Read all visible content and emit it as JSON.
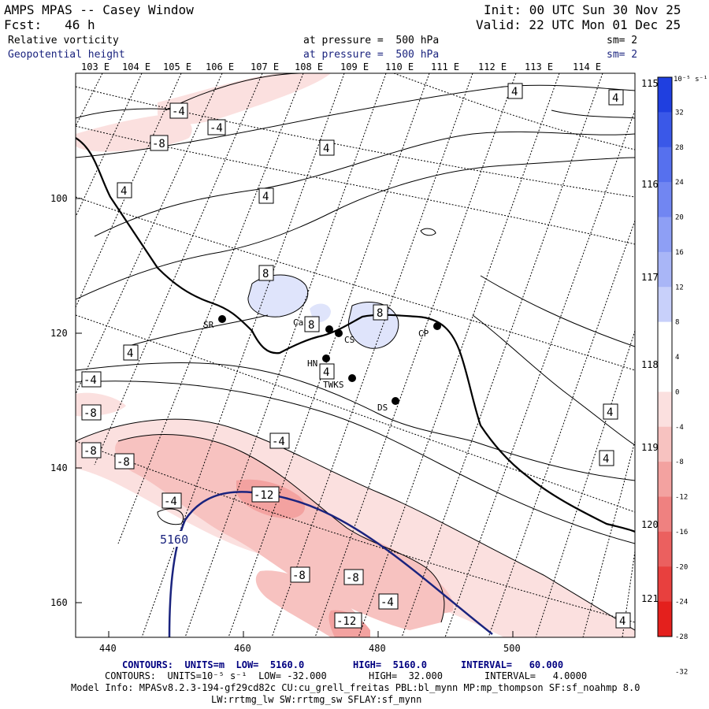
{
  "header": {
    "title": "AMPS MPAS -- Casey Window",
    "fcst": "Fcst:   46 h",
    "init": "Init: 00 UTC Sun 30 Nov 25",
    "valid": "Valid: 22 UTC Mon 01 Dec 25",
    "field1": "Relative vorticity",
    "field1_level": "at pressure =  500 hPa",
    "field1_sm": "sm= 2",
    "field2": "Geopotential height",
    "field2_level": "at pressure =  500 hPa",
    "field2_sm": "sm= 2"
  },
  "lon_labels_top": [
    "103 E",
    "104 E",
    "105 E",
    "106 E",
    "107 E",
    "108 E",
    "109 E",
    "110 E",
    "111 E",
    "112 E",
    "113 E",
    "114 E"
  ],
  "lon_labels_right": [
    "115 E",
    "116 E",
    "117 E",
    "118 E",
    "119 E",
    "120 E",
    "121 E"
  ],
  "grid_x_labels": [
    "440",
    "460",
    "480",
    "500"
  ],
  "grid_y_labels": [
    "100",
    "120",
    "140",
    "160"
  ],
  "stations": [
    "SR",
    "Casey",
    "CS",
    "CP",
    "HN",
    "TWKS",
    "DS"
  ],
  "contour_labels": {
    "vorticity": [
      "-4",
      "-4",
      "-8",
      "4",
      "4",
      "4",
      "4",
      "4",
      "8",
      "8",
      "4",
      "8",
      "4",
      "-4",
      "-8",
      "-8",
      "4",
      "-4",
      "-8",
      "-4",
      "-12",
      "-8",
      "-8",
      "-4",
      "-12",
      "4",
      "4",
      "4"
    ],
    "height": [
      "5160"
    ]
  },
  "colorbar": {
    "unit": "10⁻⁵ s⁻¹",
    "labels": [
      "32",
      "28",
      "24",
      "20",
      "16",
      "12",
      "8",
      "4",
      "0",
      "-4",
      "-8",
      "-12",
      "-16",
      "-20",
      "-24",
      "-28",
      "-32"
    ],
    "colors": [
      "#1f3fe0",
      "#3a58e8",
      "#5670ee",
      "#7186f2",
      "#8e9ff5",
      "#a9b6f7",
      "#c8d0fa",
      "#ffffff",
      "#ffffff",
      "#fbe0df",
      "#f7c2c0",
      "#f3a2a0",
      "#ef8180",
      "#eb605f",
      "#e8403e",
      "#e4201d"
    ]
  },
  "footer": {
    "line1_units": "CONTOURS:  UNITS=m  LOW=  5160.0",
    "line1_high": "HIGH=  5160.0",
    "line1_int": "INTERVAL=   60.000",
    "line2_units": "CONTOURS:  UNITS=10⁻⁵ s⁻¹  LOW= -32.000",
    "line2_high": "HIGH=  32.000",
    "line2_int": "INTERVAL=   4.0000",
    "model_info": "Model Info: MPASv8.2.3-194-gf29cd82c CU:cu_grell_freitas PBL:bl_mynn MP:mp_thompson SF:sf_noahmp 8.0",
    "model_info2": "LW:rrtmg_lw SW:rrtmg_sw SFLAY:sf_mynn"
  }
}
